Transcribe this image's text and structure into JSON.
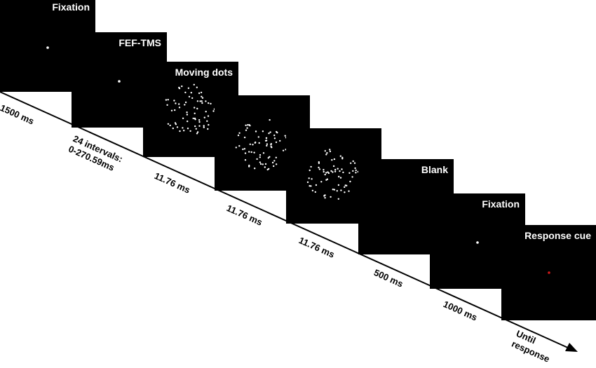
{
  "frames": [
    {
      "label": "Fixation",
      "stimulus": "white-fixation-dot"
    },
    {
      "label": "FEF-TMS",
      "stimulus": "white-fixation-dot"
    },
    {
      "label": "Moving dots",
      "stimulus": "random-dots"
    },
    {
      "label": "",
      "stimulus": "random-dots"
    },
    {
      "label": "",
      "stimulus": "random-dots"
    },
    {
      "label": "Blank",
      "stimulus": "none"
    },
    {
      "label": "Fixation",
      "stimulus": "white-fixation-dot"
    },
    {
      "label": "Response cue",
      "stimulus": "red-cue-dot"
    }
  ],
  "durations": [
    {
      "line1": "1500 ms",
      "line2": ""
    },
    {
      "line1": "24 intervals:",
      "line2": "0-270.59ms"
    },
    {
      "line1": "11.76 ms",
      "line2": ""
    },
    {
      "line1": "11.76 ms",
      "line2": ""
    },
    {
      "line1": "11.76 ms",
      "line2": ""
    },
    {
      "line1": "500 ms",
      "line2": ""
    },
    {
      "line1": "1000 ms",
      "line2": ""
    },
    {
      "line1": "Until",
      "line2": "response"
    }
  ],
  "colors": {
    "frame_background": "#000000",
    "frame_text": "#ffffff",
    "fixation_dot": "#ffffff",
    "cue_dot": "#d11a1a",
    "timeline": "#000000"
  }
}
